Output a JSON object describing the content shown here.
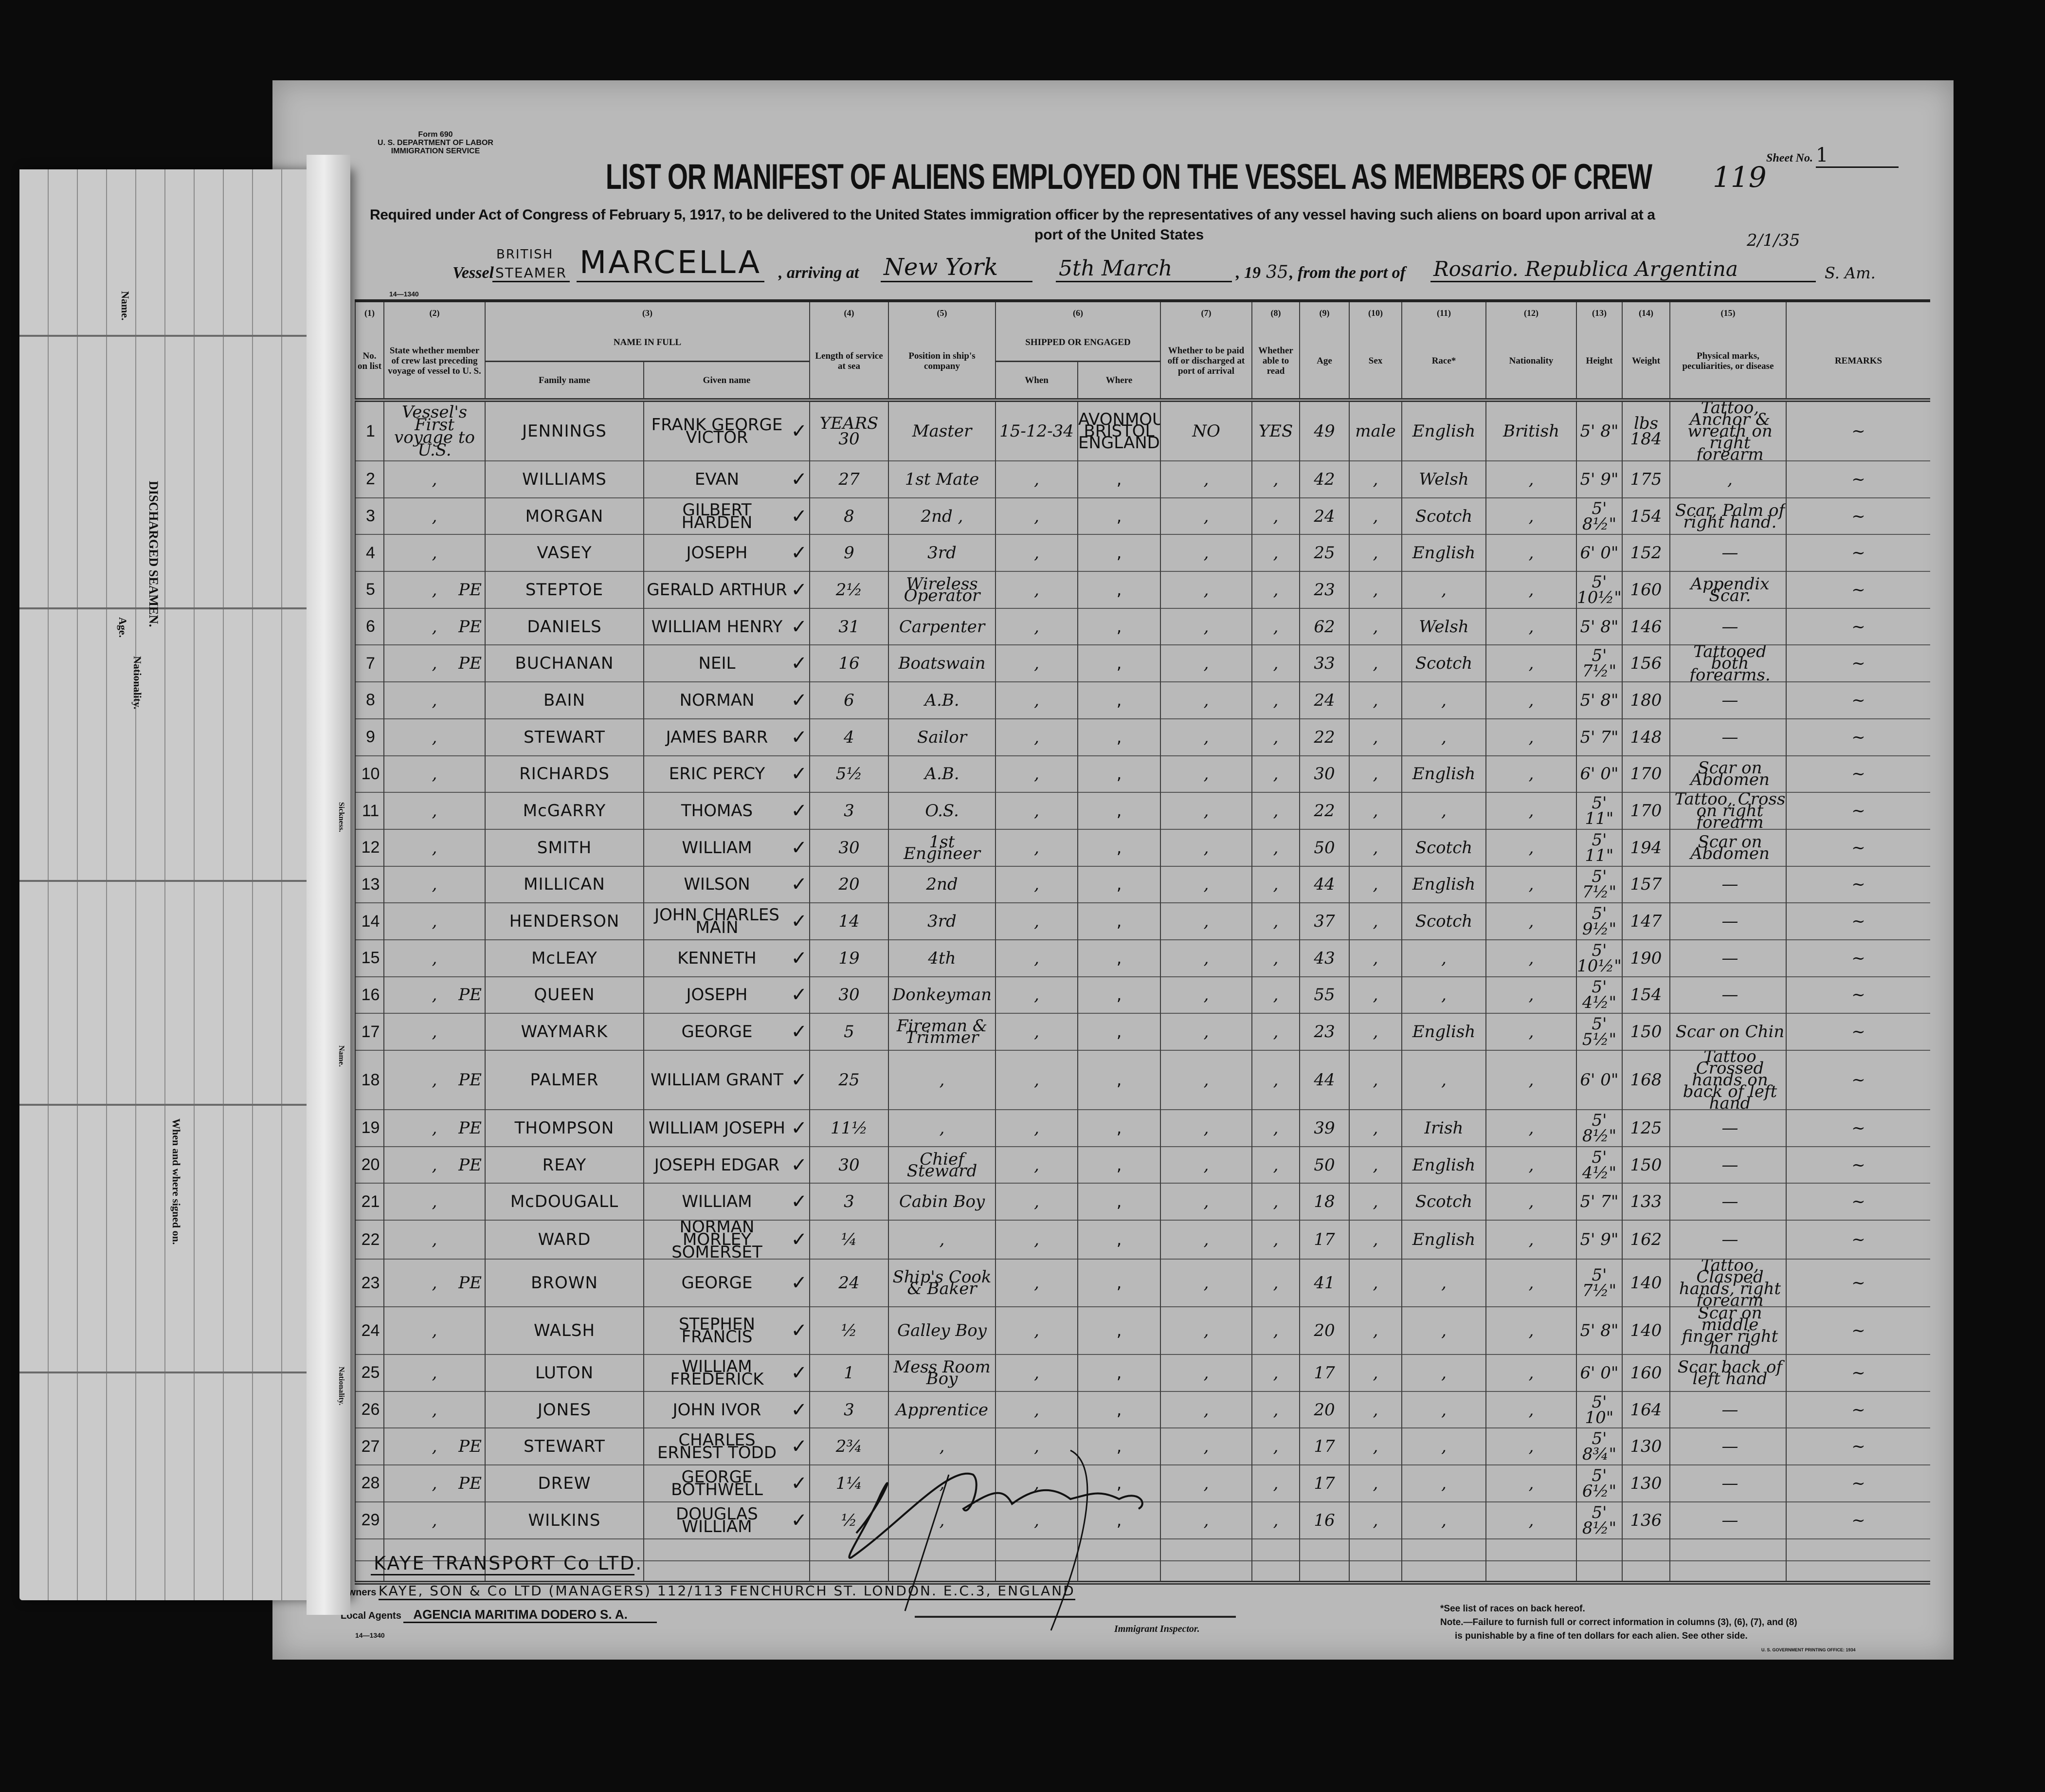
{
  "form": {
    "line1": "Form 690",
    "line2": "U. S. DEPARTMENT OF LABOR",
    "line3": "IMMIGRATION SERVICE",
    "code": "14—1340"
  },
  "title": "LIST OR MANIFEST OF ALIENS EMPLOYED ON THE VESSEL AS MEMBERS OF CREW",
  "stamp_number": "119",
  "sheet": {
    "label": "Sheet No.",
    "value": "1"
  },
  "required": "Required under Act of Congress of February 5, 1917, to be delivered to the United States immigration officer by the representatives of any vessel having such aliens on board upon arrival at a",
  "required2": "port of the United States",
  "vessel": {
    "label": "Vessel",
    "type_top": "BRITISH",
    "type": "STEAMER",
    "name": "MARCELLA",
    "arriving_label": ", arriving at",
    "port": "New York",
    "date": "5th March",
    "year_prefix": ", 19",
    "year": "35",
    "from_label": ", from the port of",
    "from_port": "Rosario. Republica Argentina",
    "from_suffix": "S. Am.",
    "annotation": "2/1/35"
  },
  "columns": {
    "nums": [
      "(1)",
      "(2)",
      "(3)",
      "(4)",
      "(5)",
      "(6)",
      "(7)",
      "(8)",
      "(9)",
      "(10)",
      "(11)",
      "(12)",
      "(13)",
      "(14)",
      "(15)",
      ""
    ],
    "c1": "No. on list",
    "c2": "State whether member of crew last preceding voyage of vessel to U. S.",
    "c3": "NAME IN FULL",
    "c3a": "Family name",
    "c3b": "Given name",
    "c4": "Length of service at sea",
    "c5": "Position in ship's company",
    "c6": "SHIPPED OR ENGAGED",
    "c6a": "When",
    "c6b": "Where",
    "c7": "Whether to be paid off or discharged at port of arrival",
    "c8": "Whether able to read",
    "c9": "Age",
    "c10": "Sex",
    "c11": "Race*",
    "c12": "Nationality",
    "c13": "Height",
    "c14": "Weight",
    "c15": "Physical marks, peculiarities, or disease",
    "c16": "REMARKS"
  },
  "rows": [
    [
      "1",
      "Vessel's First voyage to U.S.",
      "",
      "JENNINGS",
      "FRANK GEORGE VICTOR",
      "YEARS 30",
      "Master",
      "15-12-34",
      "AVONMOUTH BRISTOL ENGLAND.",
      "NO",
      "YES",
      "49",
      "male",
      "English",
      "British",
      "5' 8\"",
      "lbs 184",
      "Tattoo, Anchor & wreath on right forearm",
      "~"
    ],
    [
      "2",
      ",",
      "",
      "WILLIAMS",
      "EVAN",
      "27",
      "1st Mate",
      ",",
      ",",
      ",",
      ",",
      "42",
      ",",
      "Welsh",
      ",",
      "5' 9\"",
      "175",
      ",",
      "~"
    ],
    [
      "3",
      ",",
      "",
      "MORGAN",
      "GILBERT HARDEN",
      "8",
      "2nd  ,",
      ",",
      ",",
      ",",
      ",",
      "24",
      ",",
      "Scotch",
      ",",
      "5' 8½\"",
      "154",
      "Scar, Palm of right hand.",
      "~"
    ],
    [
      "4",
      ",",
      "",
      "VASEY",
      "JOSEPH",
      "9",
      "3rd",
      ",",
      ",",
      ",",
      ",",
      "25",
      ",",
      "English",
      ",",
      "6' 0\"",
      "152",
      "—",
      "~"
    ],
    [
      "5",
      ",",
      "PE",
      "STEPTOE",
      "GERALD ARTHUR",
      "2½",
      "Wireless Operator",
      ",",
      ",",
      ",",
      ",",
      "23",
      ",",
      ",",
      ",",
      "5' 10½\"",
      "160",
      "Appendix Scar.",
      "~"
    ],
    [
      "6",
      ",",
      "PE",
      "DANIELS",
      "WILLIAM HENRY",
      "31",
      "Carpenter",
      ",",
      ",",
      ",",
      ",",
      "62",
      ",",
      "Welsh",
      ",",
      "5' 8\"",
      "146",
      "—",
      "~"
    ],
    [
      "7",
      ",",
      "PE",
      "BUCHANAN",
      "NEIL",
      "16",
      "Boatswain",
      ",",
      ",",
      ",",
      ",",
      "33",
      ",",
      "Scotch",
      ",",
      "5' 7½\"",
      "156",
      "Tattooed both forearms.",
      "~"
    ],
    [
      "8",
      ",",
      "",
      "BAIN",
      "NORMAN",
      "6",
      "A.B.",
      ",",
      ",",
      ",",
      ",",
      "24",
      ",",
      ",",
      ",",
      "5' 8\"",
      "180",
      "—",
      "~"
    ],
    [
      "9",
      ",",
      "",
      "STEWART",
      "JAMES BARR",
      "4",
      "Sailor",
      ",",
      ",",
      ",",
      ",",
      "22",
      ",",
      ",",
      ",",
      "5' 7\"",
      "148",
      "—",
      "~"
    ],
    [
      "10",
      ",",
      "",
      "RICHARDS",
      "ERIC PERCY",
      "5½",
      "A.B.",
      ",",
      ",",
      ",",
      ",",
      "30",
      ",",
      "English",
      ",",
      "6' 0\"",
      "170",
      "Scar on Abdomen",
      "~"
    ],
    [
      "11",
      ",",
      "",
      "McGARRY",
      "THOMAS",
      "3",
      "O.S.",
      ",",
      ",",
      ",",
      ",",
      "22",
      ",",
      ",",
      ",",
      "5' 11\"",
      "170",
      "Tattoo, Cross on right forearm",
      "~"
    ],
    [
      "12",
      ",",
      "",
      "SMITH",
      "WILLIAM",
      "30",
      "1st Engineer",
      ",",
      ",",
      ",",
      ",",
      "50",
      ",",
      "Scotch",
      ",",
      "5' 11\"",
      "194",
      "Scar on Abdomen",
      "~"
    ],
    [
      "13",
      ",",
      "",
      "MILLICAN",
      "WILSON",
      "20",
      "2nd",
      ",",
      ",",
      ",",
      ",",
      "44",
      ",",
      "English",
      ",",
      "5' 7½\"",
      "157",
      "—",
      "~"
    ],
    [
      "14",
      ",",
      "",
      "HENDERSON",
      "JOHN CHARLES MAIN",
      "14",
      "3rd",
      ",",
      ",",
      ",",
      ",",
      "37",
      ",",
      "Scotch",
      ",",
      "5' 9½\"",
      "147",
      "—",
      "~"
    ],
    [
      "15",
      ",",
      "",
      "McLEAY",
      "KENNETH",
      "19",
      "4th",
      ",",
      ",",
      ",",
      ",",
      "43",
      ",",
      ",",
      ",",
      "5' 10½\"",
      "190",
      "—",
      "~"
    ],
    [
      "16",
      ",",
      "PE",
      "QUEEN",
      "JOSEPH",
      "30",
      "Donkeyman",
      ",",
      ",",
      ",",
      ",",
      "55",
      ",",
      ",",
      ",",
      "5' 4½\"",
      "154",
      "—",
      "~"
    ],
    [
      "17",
      ",",
      "",
      "WAYMARK",
      "GEORGE",
      "5",
      "Fireman & Trimmer",
      ",",
      ",",
      ",",
      ",",
      "23",
      ",",
      "English",
      ",",
      "5' 5½\"",
      "150",
      "Scar on Chin",
      "~"
    ],
    [
      "18",
      ",",
      "PE",
      "PALMER",
      "WILLIAM GRANT",
      "25",
      ",",
      ",",
      ",",
      ",",
      ",",
      "44",
      ",",
      ",",
      ",",
      "6' 0\"",
      "168",
      "Tattoo Crossed hands on back of left hand",
      "~"
    ],
    [
      "19",
      ",",
      "PE",
      "THOMPSON",
      "WILLIAM JOSEPH",
      "11½",
      ",",
      ",",
      ",",
      ",",
      ",",
      "39",
      ",",
      "Irish",
      ",",
      "5' 8½\"",
      "125",
      "—",
      "~"
    ],
    [
      "20",
      ",",
      "PE",
      "REAY",
      "JOSEPH EDGAR",
      "30",
      "Chief Steward",
      ",",
      ",",
      ",",
      ",",
      "50",
      ",",
      "English",
      ",",
      "5' 4½\"",
      "150",
      "—",
      "~"
    ],
    [
      "21",
      ",",
      "",
      "McDOUGALL",
      "WILLIAM",
      "3",
      "Cabin Boy",
      ",",
      ",",
      ",",
      ",",
      "18",
      ",",
      "Scotch",
      ",",
      "5' 7\"",
      "133",
      "—",
      "~"
    ],
    [
      "22",
      ",",
      "",
      "WARD",
      "NORMAN MORLEY SOMERSET",
      "¼",
      ",",
      ",",
      ",",
      ",",
      ",",
      "17",
      ",",
      "English",
      ",",
      "5' 9\"",
      "162",
      "—",
      "~"
    ],
    [
      "23",
      ",",
      "PE",
      "BROWN",
      "GEORGE",
      "24",
      "Ship's Cook & Baker",
      ",",
      ",",
      ",",
      ",",
      "41",
      ",",
      ",",
      ",",
      "5' 7½\"",
      "140",
      "Tattoo, Clasped hands, right forearm",
      "~"
    ],
    [
      "24",
      ",",
      "",
      "WALSH",
      "STEPHEN FRANCIS",
      "½",
      "Galley Boy",
      ",",
      ",",
      ",",
      ",",
      "20",
      ",",
      ",",
      ",",
      "5' 8\"",
      "140",
      "Scar on middle finger right hand",
      "~"
    ],
    [
      "25",
      ",",
      "",
      "LUTON",
      "WILLIAM FREDERICK",
      "1",
      "Mess Room Boy",
      ",",
      ",",
      ",",
      ",",
      "17",
      ",",
      ",",
      ",",
      "6' 0\"",
      "160",
      "Scar back of left hand",
      "~"
    ],
    [
      "26",
      ",",
      "",
      "JONES",
      "JOHN IVOR",
      "3",
      "Apprentice",
      ",",
      ",",
      ",",
      ",",
      "20",
      ",",
      ",",
      ",",
      "5' 10\"",
      "164",
      "—",
      "~"
    ],
    [
      "27",
      ",",
      "PE",
      "STEWART",
      "CHARLES ERNEST TODD",
      "2¾",
      ",",
      ",",
      ",",
      ",",
      ",",
      "17",
      ",",
      ",",
      ",",
      "5' 8¾\"",
      "130",
      "—",
      "~"
    ],
    [
      "28",
      ",",
      "PE",
      "DREW",
      "GEORGE BOTHWELL",
      "1¼",
      ",",
      ",",
      ",",
      ",",
      ",",
      "17",
      ",",
      ",",
      ",",
      "5' 6½\"",
      "130",
      "—",
      "~"
    ],
    [
      "29",
      ",",
      "",
      "WILKINS",
      "DOUGLAS WILLIAM",
      "½",
      ",",
      ",",
      ",",
      ",",
      ",",
      "16",
      ",",
      ",",
      ",",
      "5' 8½\"",
      "136",
      "—",
      "~"
    ]
  ],
  "footer": {
    "company": "KAYE TRANSPORT Co LTD.",
    "owners_label": "Owners",
    "owners": "KAYE, SON & Co LTD (MANAGERS) 112/113 FENCHURCH ST. LONDON. E.C.3, ENGLAND",
    "agents_label": "Local Agents",
    "agents": "AGENCIA MARITIMA DODERO S. A.",
    "agents_code": "14—1340",
    "inspector_label": "Immigrant Inspector.",
    "note1": "*See list of races on back hereof.",
    "note2": "Note.—Failure to furnish full or correct information in columns (3), (6), (7), and (8)",
    "note3": "is punishable by a fine of ten dollars for each alien.   See other side.",
    "printer": "U. S. GOVERNMENT PRINTING OFFICE: 1934"
  },
  "flap": {
    "heading": "DISCHARGED SEAMEN.",
    "labels": [
      "Name.",
      "Age.",
      "Nationality.",
      "When and where signed on.",
      "Sickness.",
      "Name.",
      "Nationality."
    ]
  },
  "colors": {
    "paper": "#b9b9b9",
    "background": "#0b0b0b",
    "ink": "#111111",
    "flap": "#cacaca"
  }
}
